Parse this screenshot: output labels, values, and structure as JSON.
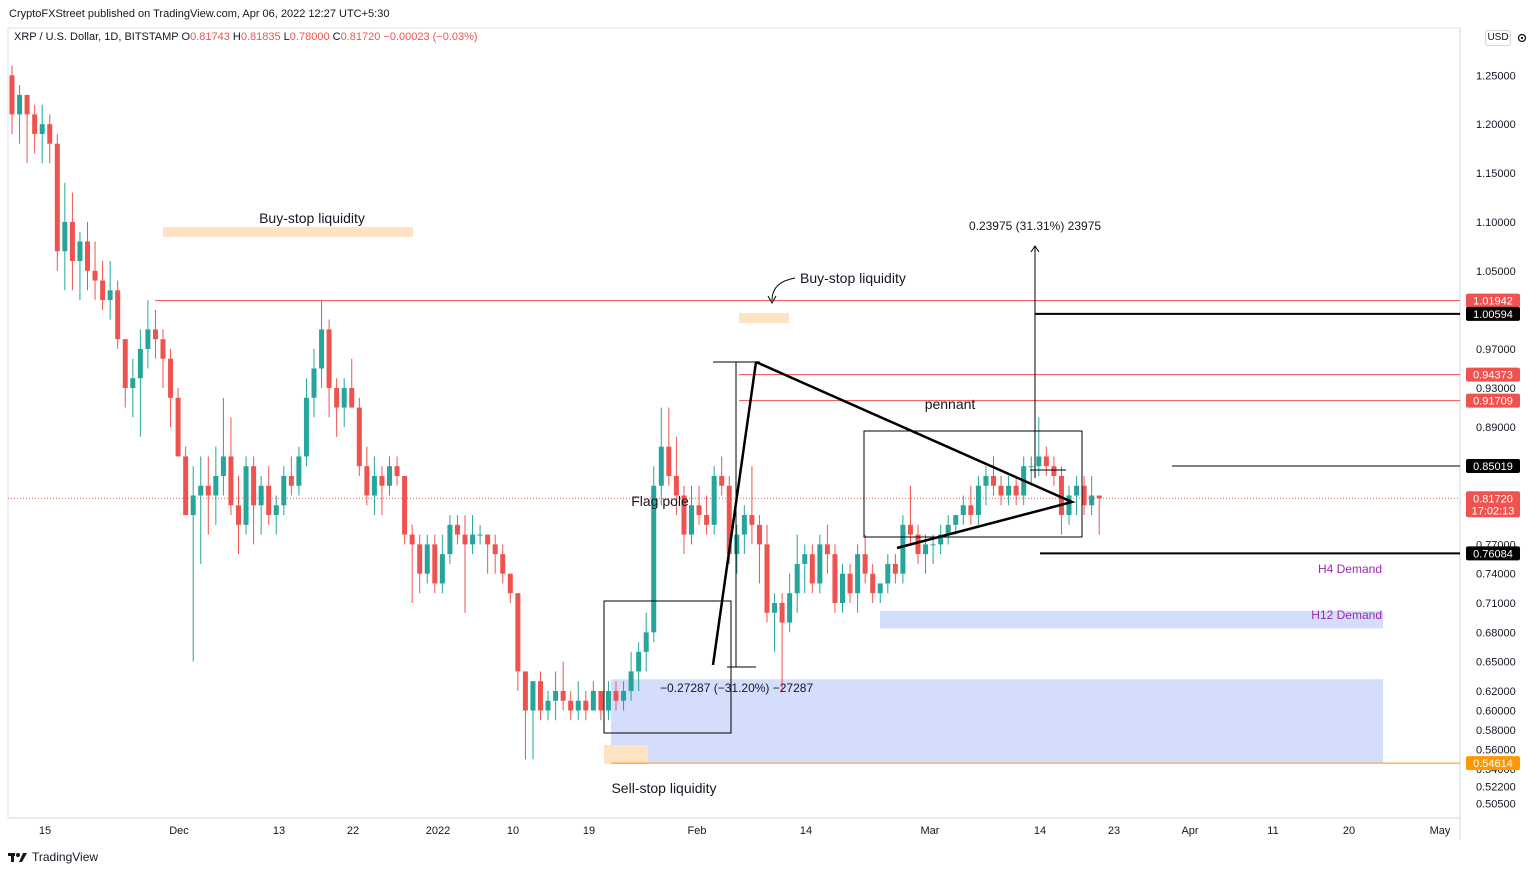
{
  "header": {
    "published": "CryptoFXStreet published on TradingView.com, Apr 06, 2022 12:27 UTC+5:30"
  },
  "legend": {
    "symbol": "XRP / U.S. Dollar, 1D, BITSTAMP",
    "o_label": "O",
    "o": "0.81743",
    "h_label": "H",
    "h": "0.81835",
    "l_label": "L",
    "l": "0.78000",
    "c_label": "C",
    "c": "0.81720",
    "change": "−0.00023 (−0.03%)"
  },
  "currency": "USD",
  "footer": {
    "brand": "TradingView"
  },
  "colors": {
    "up": "#26a69a",
    "down": "#ef5350",
    "demand": "#cdd8fb",
    "liquidity": "#fde2c4",
    "sellstop_line": "#ff9800",
    "accent_label": "#9c27b0"
  },
  "chart_data": {
    "type": "candlestick",
    "ylim": [
      0.49,
      1.28
    ],
    "price_axis_ticks": [
      "1.25000",
      "1.20000",
      "1.15000",
      "1.10000",
      "1.05000",
      "0.97000",
      "0.93000",
      "0.89000",
      "0.77000",
      "0.74000",
      "0.71000",
      "0.68000",
      "0.65000",
      "0.62000",
      "0.60000",
      "0.58000",
      "0.56000",
      "0.54000",
      "0.52200",
      "0.50500"
    ],
    "time_axis_labels": [
      "15",
      "Dec",
      "13",
      "22",
      "2022",
      "10",
      "19",
      "Feb",
      "14",
      "Mar",
      "14",
      "23",
      "Apr",
      "11",
      "20",
      "May"
    ],
    "price_tags": [
      {
        "label": "1.01942",
        "color": "#ef5350"
      },
      {
        "label": "1.00594",
        "color": "#000000"
      },
      {
        "label": "0.94373",
        "color": "#ef5350"
      },
      {
        "label": "0.91709",
        "color": "#ef5350"
      },
      {
        "label": "0.85019",
        "color": "#000000"
      },
      {
        "label": "0.81720",
        "sub": "17:02:13",
        "color": "#ef5350"
      },
      {
        "label": "0.76084",
        "color": "#000000"
      },
      {
        "label": "0.54614",
        "color": "#ff9800"
      }
    ],
    "annotations": {
      "buystop1": "Buy-stop liquidity",
      "buystop2": "Buy-stop liquidity",
      "pennant": "pennant",
      "flagpole": "Flag pole",
      "measure_up": "0.23975 (31.31%) 23975",
      "measure_down": "−0.27287 (−31.20%) −27287",
      "h4": "H4 Demand",
      "h12": "H12 Demand",
      "sellstop": "Sell-stop liquidity"
    },
    "candles": [
      [
        1.25,
        1.26,
        1.19,
        1.21
      ],
      [
        1.21,
        1.24,
        1.18,
        1.23
      ],
      [
        1.23,
        1.23,
        1.16,
        1.21
      ],
      [
        1.21,
        1.22,
        1.17,
        1.19
      ],
      [
        1.19,
        1.22,
        1.16,
        1.2
      ],
      [
        1.2,
        1.21,
        1.16,
        1.18
      ],
      [
        1.18,
        1.19,
        1.05,
        1.07
      ],
      [
        1.07,
        1.14,
        1.03,
        1.1
      ],
      [
        1.1,
        1.13,
        1.03,
        1.06
      ],
      [
        1.06,
        1.09,
        1.02,
        1.08
      ],
      [
        1.08,
        1.1,
        1.03,
        1.05
      ],
      [
        1.05,
        1.08,
        1.02,
        1.04
      ],
      [
        1.04,
        1.06,
        1.01,
        1.02
      ],
      [
        1.02,
        1.06,
        1.0,
        1.03
      ],
      [
        1.03,
        1.04,
        0.97,
        0.98
      ],
      [
        0.98,
        0.98,
        0.91,
        0.93
      ],
      [
        0.93,
        0.96,
        0.9,
        0.94
      ],
      [
        0.94,
        0.99,
        0.88,
        0.97
      ],
      [
        0.97,
        1.02,
        0.95,
        0.99
      ],
      [
        0.99,
        1.01,
        0.96,
        0.98
      ],
      [
        0.98,
        0.99,
        0.93,
        0.96
      ],
      [
        0.96,
        0.97,
        0.89,
        0.92
      ],
      [
        0.92,
        0.93,
        0.86,
        0.86
      ],
      [
        0.86,
        0.87,
        0.8,
        0.8
      ],
      [
        0.8,
        0.85,
        0.65,
        0.82
      ],
      [
        0.82,
        0.86,
        0.75,
        0.83
      ],
      [
        0.83,
        0.86,
        0.78,
        0.82
      ],
      [
        0.82,
        0.87,
        0.79,
        0.84
      ],
      [
        0.84,
        0.92,
        0.82,
        0.86
      ],
      [
        0.86,
        0.9,
        0.8,
        0.81
      ],
      [
        0.81,
        0.84,
        0.76,
        0.79
      ],
      [
        0.79,
        0.86,
        0.78,
        0.85
      ],
      [
        0.85,
        0.86,
        0.77,
        0.81
      ],
      [
        0.81,
        0.84,
        0.78,
        0.83
      ],
      [
        0.83,
        0.85,
        0.79,
        0.8
      ],
      [
        0.8,
        0.82,
        0.78,
        0.81
      ],
      [
        0.81,
        0.85,
        0.8,
        0.84
      ],
      [
        0.84,
        0.86,
        0.82,
        0.83
      ],
      [
        0.83,
        0.87,
        0.82,
        0.86
      ],
      [
        0.86,
        0.94,
        0.85,
        0.92
      ],
      [
        0.92,
        0.97,
        0.9,
        0.95
      ],
      [
        0.95,
        1.02,
        0.93,
        0.99
      ],
      [
        0.99,
        1.0,
        0.9,
        0.93
      ],
      [
        0.93,
        0.94,
        0.88,
        0.91
      ],
      [
        0.91,
        0.94,
        0.89,
        0.93
      ],
      [
        0.93,
        0.96,
        0.91,
        0.91
      ],
      [
        0.91,
        0.92,
        0.84,
        0.85
      ],
      [
        0.85,
        0.87,
        0.81,
        0.82
      ],
      [
        0.82,
        0.86,
        0.8,
        0.84
      ],
      [
        0.84,
        0.85,
        0.8,
        0.83
      ],
      [
        0.83,
        0.86,
        0.82,
        0.85
      ],
      [
        0.85,
        0.86,
        0.83,
        0.84
      ],
      [
        0.84,
        0.84,
        0.77,
        0.78
      ],
      [
        0.78,
        0.79,
        0.71,
        0.77
      ],
      [
        0.77,
        0.78,
        0.72,
        0.74
      ],
      [
        0.74,
        0.78,
        0.73,
        0.77
      ],
      [
        0.77,
        0.78,
        0.72,
        0.73
      ],
      [
        0.73,
        0.78,
        0.72,
        0.76
      ],
      [
        0.76,
        0.8,
        0.75,
        0.79
      ],
      [
        0.79,
        0.8,
        0.77,
        0.78
      ],
      [
        0.78,
        0.8,
        0.7,
        0.77
      ],
      [
        0.77,
        0.8,
        0.76,
        0.78
      ],
      [
        0.78,
        0.79,
        0.77,
        0.78
      ],
      [
        0.78,
        0.78,
        0.74,
        0.77
      ],
      [
        0.77,
        0.78,
        0.74,
        0.76
      ],
      [
        0.76,
        0.77,
        0.73,
        0.74
      ],
      [
        0.74,
        0.74,
        0.71,
        0.72
      ],
      [
        0.72,
        0.72,
        0.62,
        0.64
      ],
      [
        0.64,
        0.64,
        0.55,
        0.6
      ],
      [
        0.6,
        0.63,
        0.55,
        0.63
      ],
      [
        0.63,
        0.64,
        0.59,
        0.6
      ],
      [
        0.6,
        0.62,
        0.59,
        0.61
      ],
      [
        0.61,
        0.64,
        0.59,
        0.62
      ],
      [
        0.62,
        0.65,
        0.6,
        0.61
      ],
      [
        0.61,
        0.62,
        0.59,
        0.6
      ],
      [
        0.6,
        0.63,
        0.59,
        0.61
      ],
      [
        0.61,
        0.62,
        0.59,
        0.6
      ],
      [
        0.6,
        0.63,
        0.6,
        0.62
      ],
      [
        0.62,
        0.62,
        0.59,
        0.6
      ],
      [
        0.6,
        0.63,
        0.59,
        0.62
      ],
      [
        0.62,
        0.63,
        0.6,
        0.61
      ],
      [
        0.61,
        0.63,
        0.6,
        0.62
      ],
      [
        0.62,
        0.66,
        0.61,
        0.64
      ],
      [
        0.64,
        0.67,
        0.62,
        0.66
      ],
      [
        0.66,
        0.7,
        0.64,
        0.68
      ],
      [
        0.68,
        0.85,
        0.67,
        0.83
      ],
      [
        0.83,
        0.91,
        0.81,
        0.87
      ],
      [
        0.87,
        0.91,
        0.83,
        0.84
      ],
      [
        0.84,
        0.88,
        0.8,
        0.82
      ],
      [
        0.82,
        0.83,
        0.76,
        0.78
      ],
      [
        0.78,
        0.83,
        0.77,
        0.81
      ],
      [
        0.81,
        0.83,
        0.79,
        0.8
      ],
      [
        0.8,
        0.82,
        0.78,
        0.79
      ],
      [
        0.79,
        0.85,
        0.78,
        0.84
      ],
      [
        0.84,
        0.86,
        0.82,
        0.83
      ],
      [
        0.83,
        0.84,
        0.75,
        0.76
      ],
      [
        0.76,
        0.79,
        0.74,
        0.78
      ],
      [
        0.78,
        0.81,
        0.76,
        0.8
      ],
      [
        0.8,
        0.85,
        0.77,
        0.79
      ],
      [
        0.79,
        0.8,
        0.73,
        0.77
      ],
      [
        0.77,
        0.79,
        0.69,
        0.7
      ],
      [
        0.7,
        0.72,
        0.66,
        0.71
      ],
      [
        0.71,
        0.72,
        0.62,
        0.69
      ],
      [
        0.69,
        0.74,
        0.68,
        0.72
      ],
      [
        0.72,
        0.78,
        0.7,
        0.75
      ],
      [
        0.75,
        0.77,
        0.72,
        0.76
      ],
      [
        0.76,
        0.77,
        0.72,
        0.73
      ],
      [
        0.73,
        0.78,
        0.72,
        0.77
      ],
      [
        0.77,
        0.79,
        0.74,
        0.76
      ],
      [
        0.76,
        0.77,
        0.7,
        0.71
      ],
      [
        0.71,
        0.75,
        0.7,
        0.74
      ],
      [
        0.74,
        0.75,
        0.71,
        0.72
      ],
      [
        0.72,
        0.77,
        0.7,
        0.76
      ],
      [
        0.76,
        0.78,
        0.73,
        0.74
      ],
      [
        0.74,
        0.75,
        0.71,
        0.72
      ],
      [
        0.72,
        0.73,
        0.71,
        0.73
      ],
      [
        0.73,
        0.76,
        0.72,
        0.75
      ],
      [
        0.75,
        0.76,
        0.73,
        0.74
      ],
      [
        0.74,
        0.8,
        0.73,
        0.79
      ],
      [
        0.79,
        0.83,
        0.77,
        0.78
      ],
      [
        0.78,
        0.79,
        0.75,
        0.76
      ],
      [
        0.76,
        0.78,
        0.74,
        0.77
      ],
      [
        0.77,
        0.78,
        0.75,
        0.77
      ],
      [
        0.77,
        0.79,
        0.76,
        0.78
      ],
      [
        0.78,
        0.8,
        0.77,
        0.79
      ],
      [
        0.79,
        0.8,
        0.78,
        0.8
      ],
      [
        0.8,
        0.82,
        0.79,
        0.81
      ],
      [
        0.81,
        0.83,
        0.79,
        0.8
      ],
      [
        0.8,
        0.84,
        0.79,
        0.83
      ],
      [
        0.83,
        0.85,
        0.81,
        0.84
      ],
      [
        0.84,
        0.86,
        0.82,
        0.83
      ],
      [
        0.83,
        0.84,
        0.81,
        0.82
      ],
      [
        0.82,
        0.84,
        0.81,
        0.83
      ],
      [
        0.83,
        0.84,
        0.81,
        0.82
      ],
      [
        0.82,
        0.86,
        0.81,
        0.85
      ],
      [
        0.85,
        0.86,
        0.83,
        0.85
      ],
      [
        0.85,
        0.9,
        0.84,
        0.86
      ],
      [
        0.86,
        0.87,
        0.84,
        0.85
      ],
      [
        0.85,
        0.86,
        0.83,
        0.84
      ],
      [
        0.84,
        0.85,
        0.78,
        0.8
      ],
      [
        0.8,
        0.83,
        0.79,
        0.82
      ],
      [
        0.82,
        0.84,
        0.8,
        0.83
      ],
      [
        0.83,
        0.84,
        0.8,
        0.81
      ],
      [
        0.81,
        0.84,
        0.8,
        0.82
      ],
      [
        0.82,
        0.82,
        0.78,
        0.8172
      ]
    ]
  }
}
